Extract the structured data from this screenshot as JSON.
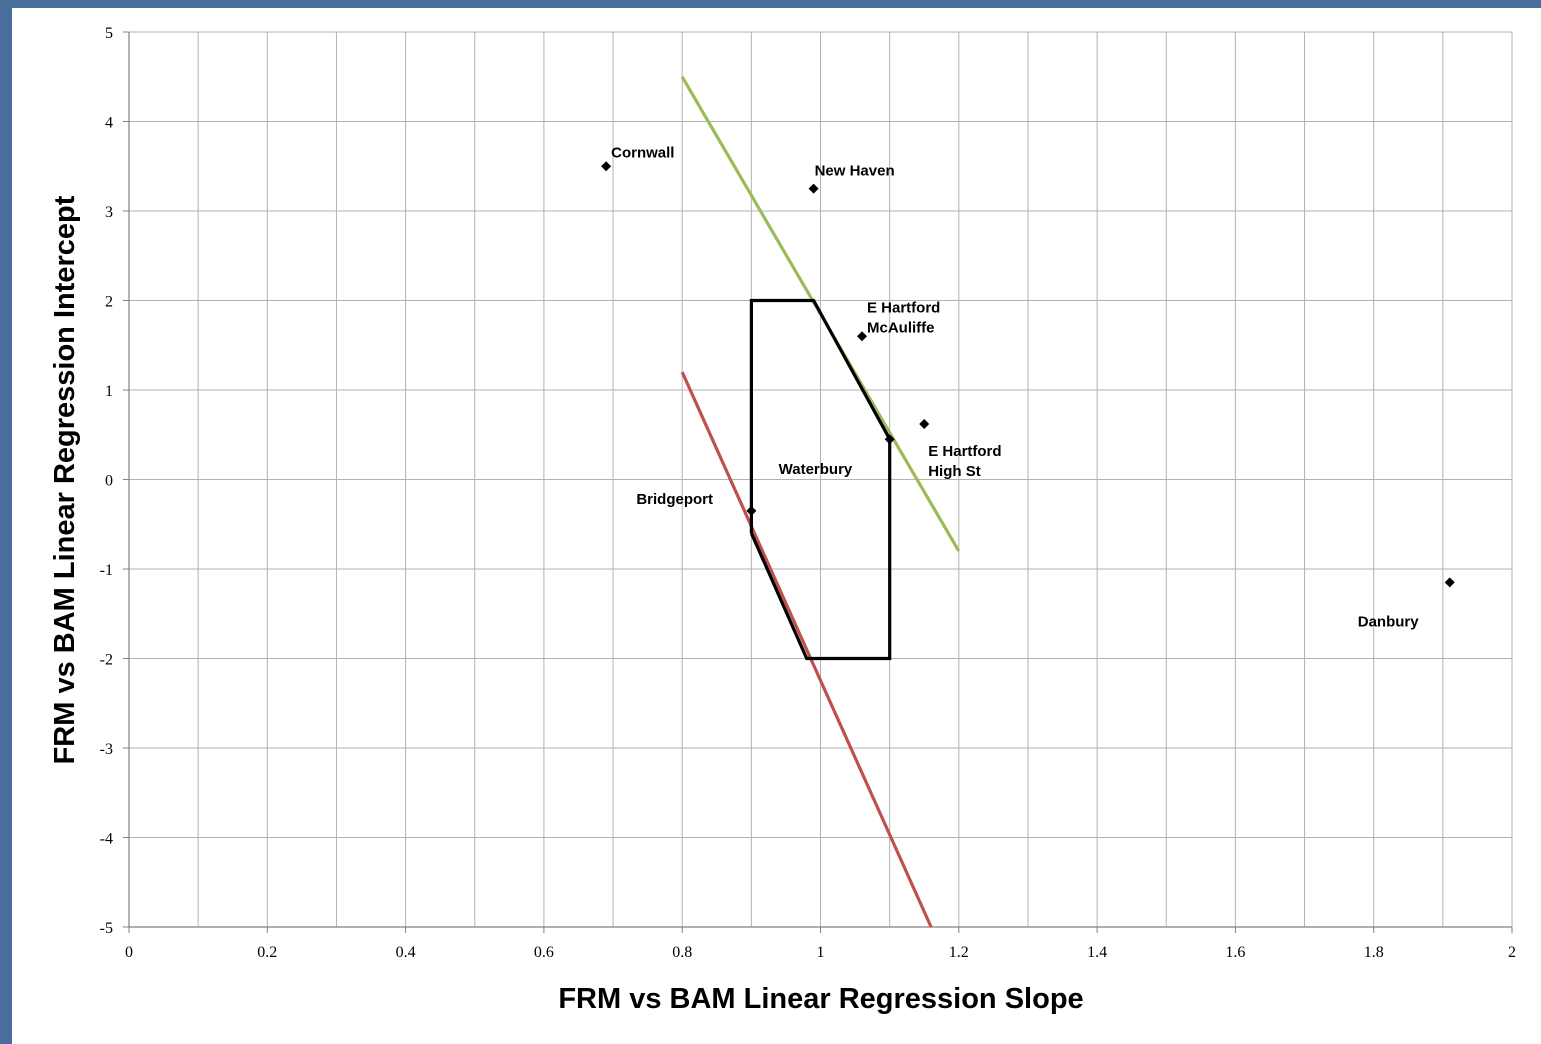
{
  "chart_data": {
    "type": "scatter",
    "title": "",
    "xlabel": "FRM vs BAM Linear Regression Slope",
    "ylabel": "FRM vs BAM Linear Regression Intercept",
    "xlim": [
      0,
      2
    ],
    "ylim": [
      -5,
      5
    ],
    "x_ticks": [
      "0",
      "0.2",
      "0.4",
      "0.6",
      "0.8",
      "1",
      "1.2",
      "1.4",
      "1.6",
      "1.8",
      "2"
    ],
    "y_ticks": [
      "5",
      "4",
      "3",
      "2",
      "1",
      "0",
      "-1",
      "-2",
      "-3",
      "-4",
      "-5"
    ],
    "grid": true,
    "points": [
      {
        "label": [
          "Cornwall"
        ],
        "x": 0.69,
        "y": 3.5
      },
      {
        "label": [
          "New Haven"
        ],
        "x": 0.99,
        "y": 3.25
      },
      {
        "label": [
          "E Hartford",
          "McAuliffe"
        ],
        "x": 1.06,
        "y": 1.6
      },
      {
        "label": [
          "E Hartford",
          "High St"
        ],
        "x": 1.15,
        "y": 0.62
      },
      {
        "label": [
          "Waterbury"
        ],
        "x": 1.1,
        "y": 0.45
      },
      {
        "label": [
          "Bridgeport"
        ],
        "x": 0.9,
        "y": -0.35
      },
      {
        "label": [
          "Danbury"
        ],
        "x": 1.91,
        "y": -1.15
      }
    ],
    "lines": [
      {
        "color": "#9bbb59",
        "points": [
          [
            0.8,
            4.5
          ],
          [
            1.2,
            -0.8
          ]
        ]
      },
      {
        "color": "#c0504d",
        "points": [
          [
            0.8,
            1.2
          ],
          [
            1.16,
            -5.0
          ]
        ]
      },
      {
        "color": "#000000",
        "points": [
          [
            0.9,
            -0.6
          ],
          [
            0.9,
            2.0
          ],
          [
            0.99,
            2.0
          ],
          [
            1.1,
            0.45
          ],
          [
            1.1,
            -2.0
          ],
          [
            0.98,
            -2.0
          ],
          [
            0.9,
            -0.6
          ]
        ]
      }
    ],
    "colors": {
      "marker": "#000000",
      "grid": "#b3b3b3",
      "frame_background": "#4a6e9c"
    }
  }
}
